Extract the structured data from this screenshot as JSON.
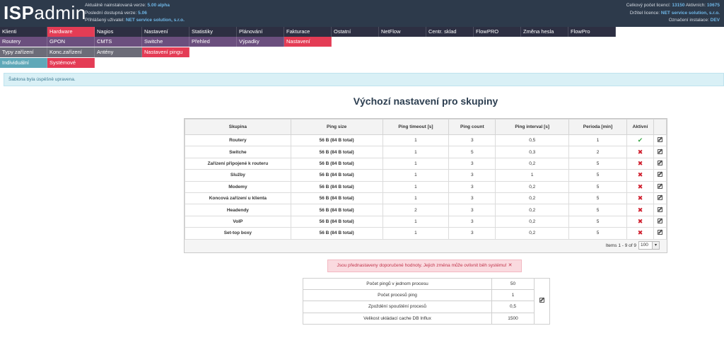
{
  "header": {
    "logo_bold": "ISP",
    "logo_rest": "admin",
    "installed_label": "Aktuálně nainstalovaná verze:",
    "installed_value": "5.00 alpha",
    "latest_label": "Poslední dostupná verze:",
    "latest_value": "5.06",
    "user_label": "Přihlášený uživatel:",
    "user_value": "NET service solution, s.r.o.",
    "licenses_label": "Celkový počet licencí:",
    "licenses_value": "13150",
    "active_label": "Aktivních:",
    "active_value": "10675",
    "holder_label": "Držitel licence:",
    "holder_value": "NET service solution, s.r.o.",
    "install_label": "Označení instalace:",
    "install_value": "DEV"
  },
  "menu": {
    "row1": [
      "Klienti",
      "Hardware",
      "Nagios",
      "Nastavení",
      "Statistiky",
      "Plánování",
      "Fakturace",
      "Ostatní",
      "NetFlow",
      "Centr. sklad",
      "FlowPRO",
      "Změna hesla",
      "FlowPro"
    ],
    "row2": [
      "Routery",
      "GPON",
      "CMTS",
      "Switche",
      "Přehled",
      "Výpadky",
      "Nastavení"
    ],
    "row3": [
      "Typy zařízení",
      "Konc.zařízení",
      "Antény",
      "Nastavení pingu"
    ],
    "row4": [
      "Individuální",
      "Systémové"
    ]
  },
  "alert": "Šablona byla úspěšně upravena.",
  "title": "Výchozí nastavení pro skupiny",
  "grid": {
    "headers": [
      "Skupina",
      "Ping size",
      "Ping timeout [s]",
      "Ping count",
      "Ping interval [s]",
      "Perioda [min]",
      "Aktivní",
      ""
    ],
    "rows": [
      {
        "group": "Routery",
        "size": "56 B (84 B total)",
        "timeout": "1",
        "count": "3",
        "interval": "0,5",
        "period": "1",
        "active": true
      },
      {
        "group": "Switche",
        "size": "56 B (84 B total)",
        "timeout": "1",
        "count": "5",
        "interval": "0,3",
        "period": "2",
        "active": false
      },
      {
        "group": "Zařízení připojené k routeru",
        "size": "56 B (84 B total)",
        "timeout": "1",
        "count": "3",
        "interval": "0,2",
        "period": "5",
        "active": false
      },
      {
        "group": "Služby",
        "size": "56 B (84 B total)",
        "timeout": "1",
        "count": "3",
        "interval": "1",
        "period": "5",
        "active": false
      },
      {
        "group": "Modemy",
        "size": "56 B (84 B total)",
        "timeout": "1",
        "count": "3",
        "interval": "0,2",
        "period": "5",
        "active": false
      },
      {
        "group": "Koncová zařízení u klienta",
        "size": "56 B (84 B total)",
        "timeout": "1",
        "count": "3",
        "interval": "0,2",
        "period": "5",
        "active": false
      },
      {
        "group": "Headendy",
        "size": "56 B (84 B total)",
        "timeout": "2",
        "count": "3",
        "interval": "0,2",
        "period": "5",
        "active": false
      },
      {
        "group": "VoIP",
        "size": "56 B (84 B total)",
        "timeout": "1",
        "count": "3",
        "interval": "0,2",
        "period": "5",
        "active": false
      },
      {
        "group": "Set-top boxy",
        "size": "56 B (84 B total)",
        "timeout": "1",
        "count": "3",
        "interval": "0,2",
        "period": "5",
        "active": false
      }
    ],
    "pager_text": "Items 1 - 9 of 9",
    "page_size": "100"
  },
  "warning": "Jsou přednastaveny doporučené hodnoty. Jejich změna může ovlivnit běh systému!",
  "settings": [
    {
      "label": "Počet pingů v jednom procesu",
      "value": "50"
    },
    {
      "label": "Počet procesů ping",
      "value": "1"
    },
    {
      "label": "Zpoždění spouštění procesů",
      "value": "0,5"
    },
    {
      "label": "Velikost ukládací cache DB Influx",
      "value": "1500"
    }
  ]
}
